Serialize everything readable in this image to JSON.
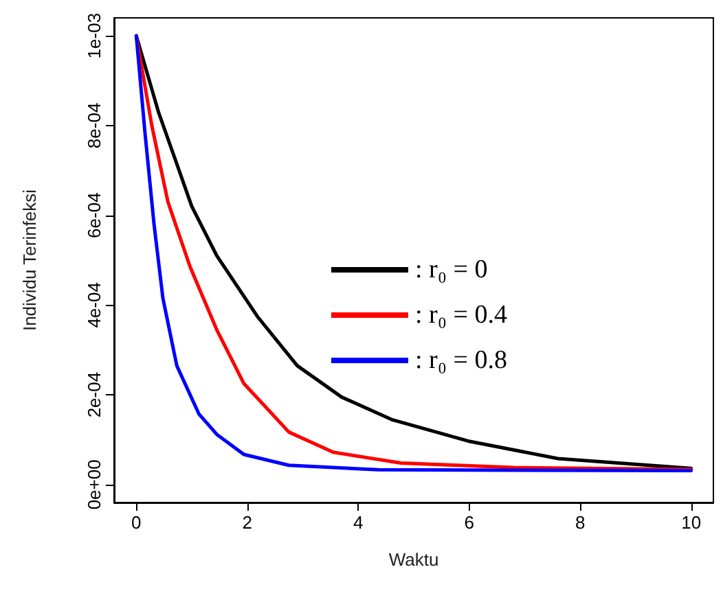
{
  "chart_data": {
    "type": "line",
    "xlabel": "Waktu",
    "ylabel": "Individu Terinfeksi",
    "xlim": [
      -0.4,
      10.4
    ],
    "xticks": [
      0,
      2,
      4,
      6,
      8,
      10
    ],
    "ylim": [
      -4e-05,
      0.00104
    ],
    "yticks": [
      {
        "value": 0,
        "label": "0e+00"
      },
      {
        "value": 0.0002,
        "label": "2e-04"
      },
      {
        "value": 0.0004,
        "label": "4e-04"
      },
      {
        "value": 0.0006,
        "label": "6e-04"
      },
      {
        "value": 0.0008,
        "label": "8e-04"
      },
      {
        "value": 0.001,
        "label": "1e-03"
      }
    ],
    "grid": false,
    "legend": "right",
    "marker": "none",
    "line_style": "solid",
    "series": [
      {
        "name": ": r₀ = 0",
        "color": "#000000",
        "x": [
          0,
          0.4,
          1,
          1.45,
          2.18,
          2.9,
          3.7,
          4.6,
          5.98,
          7.6,
          10
        ],
        "values": [
          0.001,
          0.00083,
          0.00062,
          0.00051,
          0.000375,
          0.000265,
          0.000195,
          0.000145,
          9.7e-05,
          5.8e-05,
          3.6e-05
        ]
      },
      {
        "name": ": r₀ = 0.4",
        "color": "#ff0000",
        "x": [
          0,
          0.28,
          0.57,
          0.97,
          1.45,
          1.94,
          2.75,
          3.55,
          4.77,
          6.8,
          10
        ],
        "values": [
          0.001,
          0.0008,
          0.00063,
          0.000485,
          0.000345,
          0.000225,
          0.000117,
          7.2e-05,
          4.8e-05,
          3.8e-05,
          3.4e-05
        ]
      },
      {
        "name": ": r₀ = 0.8",
        "color": "#0000ff",
        "x": [
          0,
          0.16,
          0.32,
          0.48,
          0.73,
          1.13,
          1.45,
          1.94,
          2.75,
          4.36,
          10
        ],
        "values": [
          0.001,
          0.00078,
          0.00058,
          0.000415,
          0.000265,
          0.000157,
          0.000112,
          6.7e-05,
          4.3e-05,
          3.3e-05,
          3.1e-05
        ]
      }
    ]
  }
}
